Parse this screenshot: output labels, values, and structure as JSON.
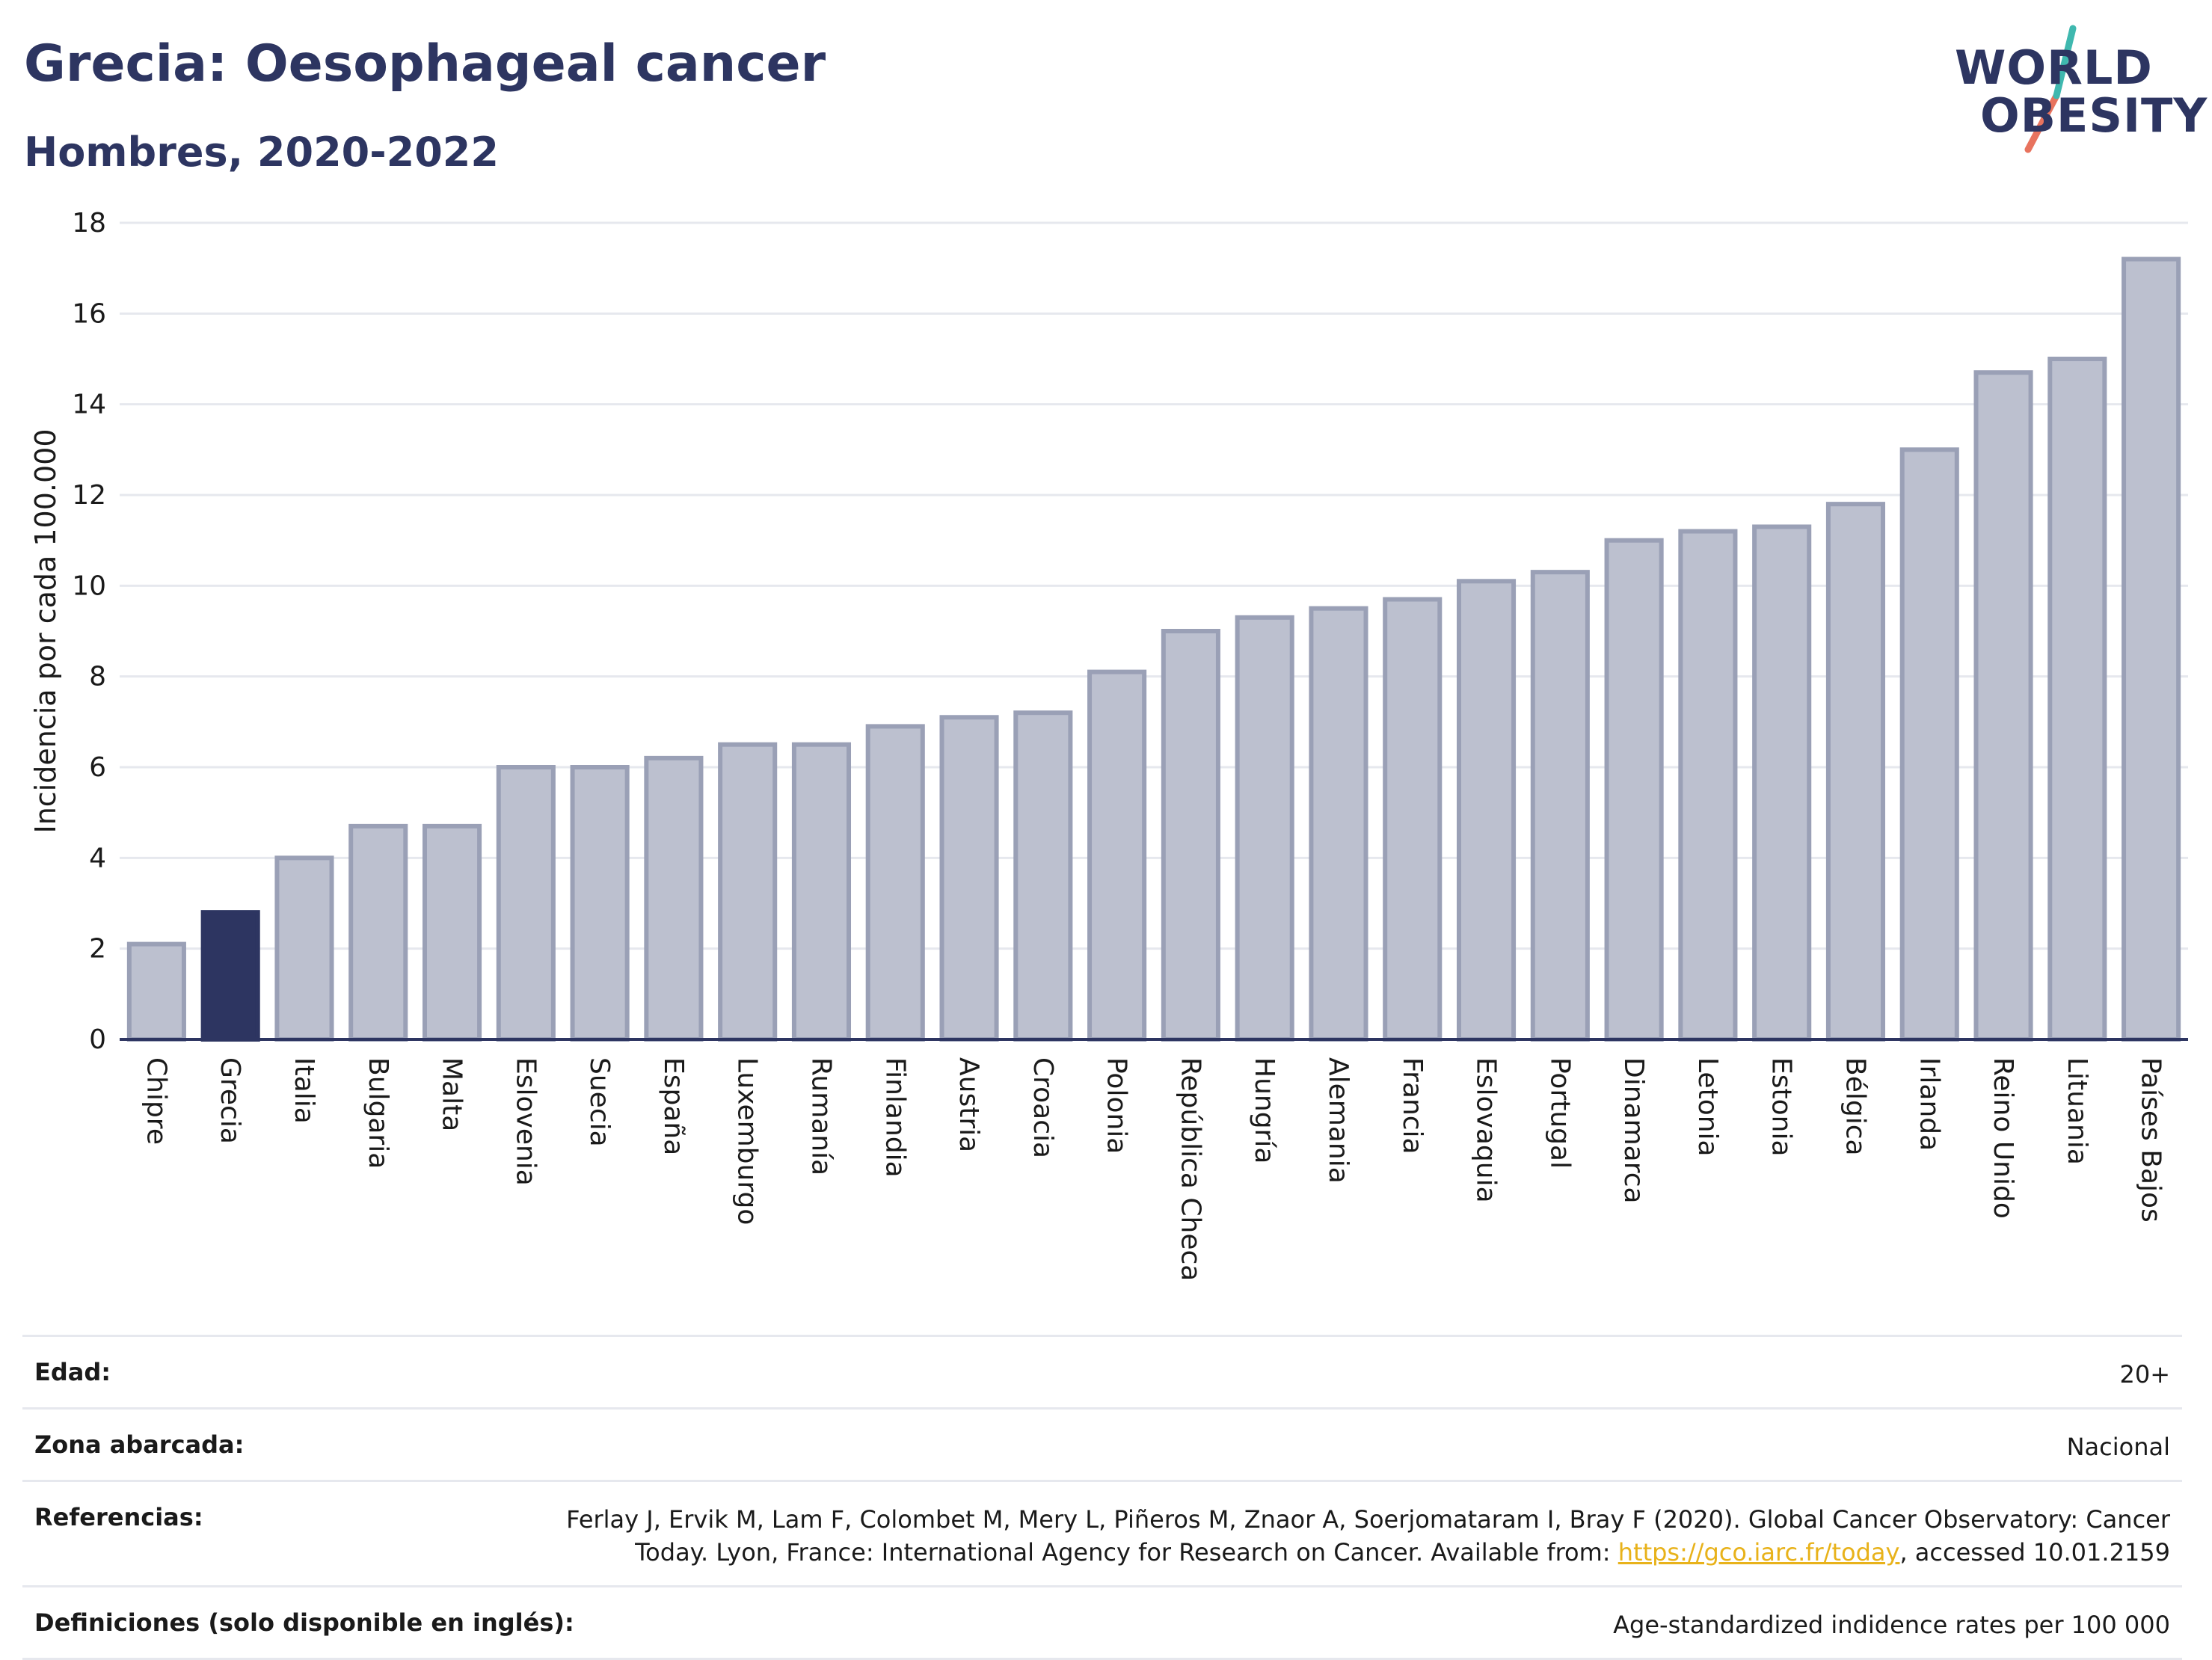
{
  "header": {
    "title": "Grecia: Oesophageal cancer",
    "subtitle": "Hombres, 2020-2022"
  },
  "logo": {
    "line1": "WORLD",
    "line2": "OBESITY"
  },
  "colors": {
    "bar": "#bcc0cf",
    "bar_stroke": "#9aa0b6",
    "highlight": "#2d3561",
    "grid": "#e6e8ee",
    "axis": "#2d3561"
  },
  "chart_data": {
    "type": "bar",
    "ylabel": "Incidencia por cada 100.000",
    "xlabel": "",
    "ylim": [
      0,
      18
    ],
    "yticks": [
      0,
      2,
      4,
      6,
      8,
      10,
      12,
      14,
      16,
      18
    ],
    "grid": true,
    "highlight": "Grecia",
    "categories": [
      "Chipre",
      "Grecia",
      "Italia",
      "Bulgaria",
      "Malta",
      "Eslovenia",
      "Suecia",
      "España",
      "Luxemburgo",
      "Rumanía",
      "Finlandia",
      "Austria",
      "Croacia",
      "Polonia",
      "República Checa",
      "Hungría",
      "Alemania",
      "Francia",
      "Eslovaquia",
      "Portugal",
      "Dinamarca",
      "Letonia",
      "Estonia",
      "Bélgica",
      "Irlanda",
      "Reino Unido",
      "Lituania",
      "Países Bajos"
    ],
    "values": [
      2.1,
      2.8,
      4.0,
      4.7,
      4.7,
      6.0,
      6.0,
      6.2,
      6.5,
      6.5,
      6.9,
      7.1,
      7.2,
      8.1,
      9.0,
      9.3,
      9.5,
      9.7,
      10.1,
      10.3,
      11.0,
      11.2,
      11.3,
      11.8,
      13.0,
      14.7,
      15.0,
      17.2
    ]
  },
  "info": {
    "edad_label": "Edad:",
    "edad_value": "20+",
    "zona_label": "Zona abarcada:",
    "zona_value": "Nacional",
    "ref_label": "Referencias:",
    "ref_text_1": "Ferlay J, Ervik M, Lam F, Colombet M, Mery L, Piñeros M, Znaor A, Soerjomataram I, Bray F (2020). Global Cancer Observatory: Cancer Today. Lyon, France: International Agency for Research on Cancer. Available from: ",
    "ref_link": "https://gco.iarc.fr/today",
    "ref_text_2": ", accessed 10.01.2159",
    "def_label": "Definiciones (solo disponible en inglés):",
    "def_value": "Age-standardized indidence rates per 100 000"
  }
}
